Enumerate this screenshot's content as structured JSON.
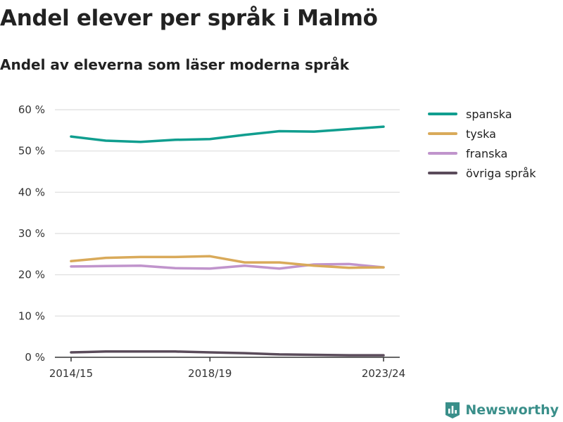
{
  "title": "Andel elever per språk i Malmö",
  "subtitle": "Andel av eleverna som läser moderna språk",
  "brand": {
    "name": "Newsworthy",
    "color": "#3a8f8a",
    "icon": "bar-chart-flag-icon"
  },
  "chart_data": {
    "type": "line",
    "x": [
      "2014/15",
      "2015/16",
      "2016/17",
      "2017/18",
      "2018/19",
      "2019/20",
      "2020/21",
      "2021/22",
      "2022/23",
      "2023/24"
    ],
    "x_ticks": [
      "2014/15",
      "2018/19",
      "2023/24"
    ],
    "y_ticks": [
      0,
      10,
      20,
      30,
      40,
      50,
      60
    ],
    "y_tick_labels": [
      "0 %",
      "10 %",
      "20 %",
      "30 %",
      "40 %",
      "50 %",
      "60 %"
    ],
    "ylim": [
      0,
      60
    ],
    "grid": true,
    "legend_position": "right",
    "series": [
      {
        "name": "spanska",
        "color": "#109e8f",
        "values": [
          53.5,
          52.5,
          52.2,
          52.7,
          52.9,
          53.9,
          54.8,
          54.7,
          55.3,
          55.9
        ]
      },
      {
        "name": "tyska",
        "color": "#d9aa5a",
        "values": [
          23.3,
          24.1,
          24.3,
          24.3,
          24.5,
          23.0,
          23.0,
          22.2,
          21.7,
          21.8
        ]
      },
      {
        "name": "franska",
        "color": "#c094cc",
        "values": [
          22.0,
          22.1,
          22.2,
          21.6,
          21.5,
          22.2,
          21.5,
          22.5,
          22.6,
          21.8
        ]
      },
      {
        "name": "övriga språk",
        "color": "#5a4b5a",
        "values": [
          1.2,
          1.4,
          1.4,
          1.4,
          1.2,
          1.0,
          0.7,
          0.6,
          0.5,
          0.5
        ]
      }
    ]
  }
}
